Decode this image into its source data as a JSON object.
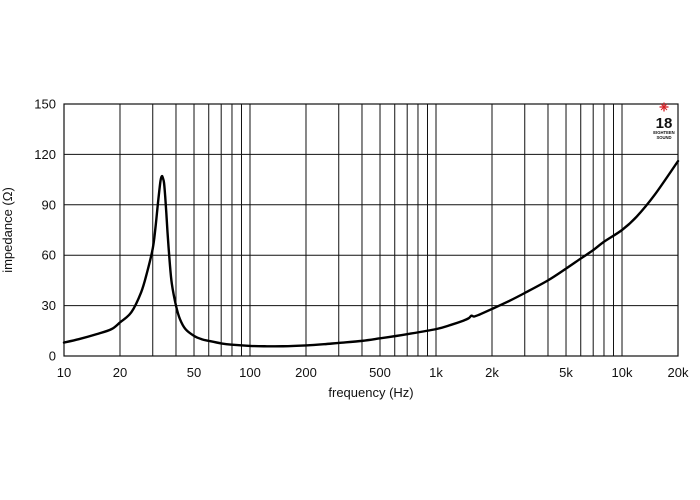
{
  "chart_data": {
    "type": "line",
    "xlabel": "frequency (Hz)",
    "ylabel": "impedance (Ω)",
    "xscale": "log",
    "xlim": [
      10,
      20000
    ],
    "ylim": [
      0,
      150
    ],
    "x_ticks": [
      10,
      20,
      50,
      100,
      200,
      500,
      1000,
      2000,
      5000,
      10000,
      20000
    ],
    "x_tick_labels": [
      "10",
      "20",
      "50",
      "100",
      "200",
      "500",
      "1k",
      "2k",
      "5k",
      "10k",
      "20k"
    ],
    "y_ticks": [
      0,
      30,
      60,
      90,
      120,
      150
    ],
    "y_tick_labels": [
      "0",
      "30",
      "60",
      "90",
      "120",
      "150"
    ],
    "grid": true,
    "series": [
      {
        "x": [
          10,
          12,
          15,
          18,
          20,
          23,
          26,
          28,
          30,
          31,
          32,
          33,
          33.6,
          34,
          34.5,
          35,
          35.5,
          36,
          37,
          38,
          40,
          42,
          45,
          50,
          55,
          60,
          70,
          80,
          100,
          120,
          150,
          200,
          250,
          300,
          400,
          500,
          700,
          1000,
          1200,
          1400,
          1500,
          1550,
          1600,
          1700,
          2000,
          2500,
          3000,
          4000,
          5000,
          6000,
          7000,
          8000,
          10000,
          12000,
          15000,
          20000
        ],
        "y": [
          8,
          10,
          13,
          16,
          20,
          26,
          38,
          50,
          64,
          76,
          91,
          104,
          107,
          106,
          103,
          95,
          85,
          74,
          56,
          43,
          30,
          22,
          16,
          12,
          10,
          9,
          7.5,
          6.7,
          6,
          5.8,
          5.8,
          6.3,
          7,
          7.8,
          9,
          10.5,
          13,
          16,
          18.5,
          21,
          22.5,
          24,
          23.5,
          24.5,
          28,
          33,
          37.5,
          45,
          52,
          58,
          63,
          68,
          75,
          83,
          96,
          116
        ]
      }
    ]
  },
  "logo": {
    "number": "18",
    "subtext_1": "EIGHTEEN",
    "subtext_2": "SOUND",
    "accent_color": "#d62027"
  }
}
